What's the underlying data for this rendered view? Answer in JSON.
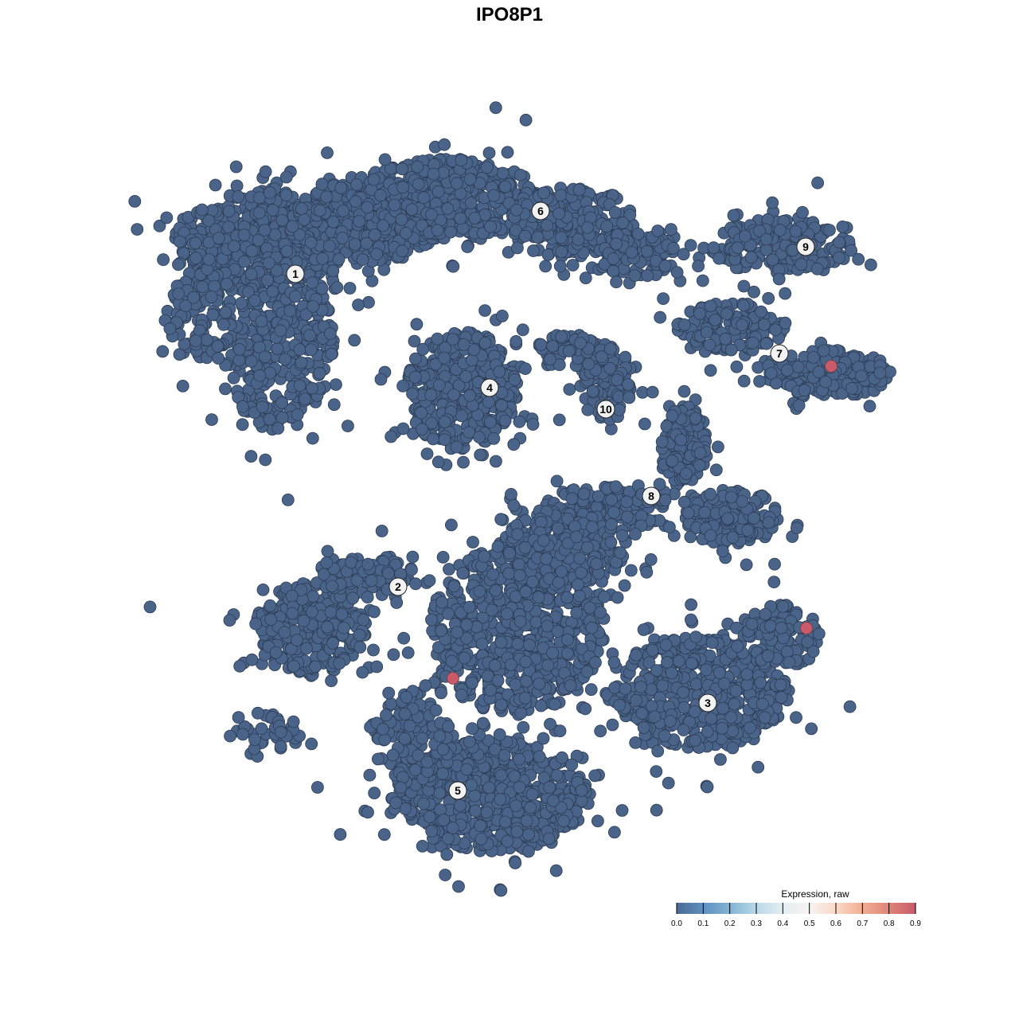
{
  "chart_data": {
    "type": "scatter",
    "title": "IPO8P1",
    "xlabel": "",
    "ylabel": "",
    "axes_visible": false,
    "grid": false,
    "point_color": "#4a6489",
    "point_outline": "#2c3b52",
    "base_value": 0.0,
    "clusters": [
      {
        "label": "1",
        "label_pos": [
          -26.9,
          29.6
        ],
        "regions": [
          {
            "center": [
              -31,
              34
            ],
            "spread": [
              11,
              6
            ],
            "n": 500
          },
          {
            "center": [
              -29,
              21
            ],
            "spread": [
              7,
              11
            ],
            "n": 400
          },
          {
            "center": [
              -18,
              36
            ],
            "spread": [
              10,
              5
            ],
            "n": 300
          },
          {
            "center": [
              -39,
              24
            ],
            "spread": [
              4,
              6
            ],
            "n": 100
          }
        ]
      },
      {
        "label": "6",
        "label_pos": [
          3.9,
          37.5
        ],
        "regions": [
          {
            "center": [
              -8,
              39
            ],
            "spread": [
              12,
              5
            ],
            "n": 500
          },
          {
            "center": [
              8,
              36
            ],
            "spread": [
              8,
              4.5
            ],
            "n": 250
          },
          {
            "center": [
              16,
              32
            ],
            "spread": [
              5,
              3
            ],
            "n": 100
          }
        ]
      },
      {
        "label": "4",
        "label_pos": [
          -2.5,
          15.3
        ],
        "regions": [
          {
            "center": [
              -6,
              15
            ],
            "spread": [
              7,
              7.5
            ],
            "n": 450
          }
        ]
      },
      {
        "label": "10",
        "label_pos": [
          12.1,
          12.6
        ],
        "regions": [
          {
            "center": [
              12,
              16
            ],
            "spread": [
              3.5,
              5
            ],
            "n": 120
          },
          {
            "center": [
              8,
              20
            ],
            "spread": [
              5,
              2
            ],
            "n": 60
          }
        ]
      },
      {
        "label": "9",
        "label_pos": [
          37.2,
          33
        ],
        "regions": [
          {
            "center": [
              34,
              33
            ],
            "spread": [
              9,
              3.5
            ],
            "n": 200
          }
        ]
      },
      {
        "label": "7",
        "label_pos": [
          33.9,
          19.6
        ],
        "regions": [
          {
            "center": [
              28,
              23
            ],
            "spread": [
              7,
              3
            ],
            "n": 150
          },
          {
            "center": [
              40,
              17
            ],
            "spread": [
              8,
              3
            ],
            "n": 200
          }
        ]
      },
      {
        "label": "8",
        "label_pos": [
          17.8,
          1.7
        ],
        "regions": [
          {
            "center": [
              22,
              8
            ],
            "spread": [
              3,
              5
            ],
            "n": 150
          },
          {
            "center": [
              28,
              -1
            ],
            "spread": [
              6,
              3.5
            ],
            "n": 180
          },
          {
            "center": [
              12,
              0
            ],
            "spread": [
              8,
              3
            ],
            "n": 150
          }
        ]
      },
      {
        "label": "2",
        "label_pos": [
          -14,
          -9.7
        ],
        "regions": [
          {
            "center": [
              -25,
              -15
            ],
            "spread": [
              7,
              6
            ],
            "n": 300
          },
          {
            "center": [
              -18,
              -8
            ],
            "spread": [
              6,
              2.5
            ],
            "n": 100
          },
          {
            "center": [
              -30,
              -28
            ],
            "spread": [
              4,
              2.5
            ],
            "n": 40
          }
        ]
      },
      {
        "label": "5",
        "label_pos": [
          -6.5,
          -35.3
        ],
        "regions": [
          {
            "center": [
              -2,
              -36
            ],
            "spread": [
              12,
              7
            ],
            "n": 600
          },
          {
            "center": [
              -12,
              -29
            ],
            "spread": [
              5,
              6
            ],
            "n": 150
          },
          {
            "center": [
              1,
              -15
            ],
            "spread": [
              11,
              11
            ],
            "n": 700
          },
          {
            "center": [
              7,
              -5
            ],
            "spread": [
              8,
              5
            ],
            "n": 250
          }
        ]
      },
      {
        "label": "3",
        "label_pos": [
          24.9,
          -24.3
        ],
        "regions": [
          {
            "center": [
              24,
              -23
            ],
            "spread": [
              11,
              7
            ],
            "n": 500
          },
          {
            "center": [
              34,
              -16
            ],
            "spread": [
              5,
              4
            ],
            "n": 120
          }
        ]
      }
    ],
    "highlighted_points": [
      {
        "x": 40.4,
        "y": 18.0,
        "value": 0.9
      },
      {
        "x": 37.3,
        "y": -14.9,
        "value": 0.9
      },
      {
        "x": -7.1,
        "y": -21.2,
        "value": 0.9
      }
    ],
    "colorbar": {
      "title": "Expression, raw",
      "ticks": [
        "0.0",
        "0.1",
        "0.2",
        "0.3",
        "0.4",
        "0.5",
        "0.6",
        "0.7",
        "0.8",
        "0.9"
      ],
      "range": [
        0,
        0.9
      ],
      "colors": [
        "#4a6a93",
        "#5e8fc1",
        "#82b4d4",
        "#b9d8e7",
        "#e4eef3",
        "#f7f3f1",
        "#fbd9c8",
        "#f2ae92",
        "#df8478",
        "#c85a6a"
      ],
      "placement": "bottom-right"
    }
  }
}
